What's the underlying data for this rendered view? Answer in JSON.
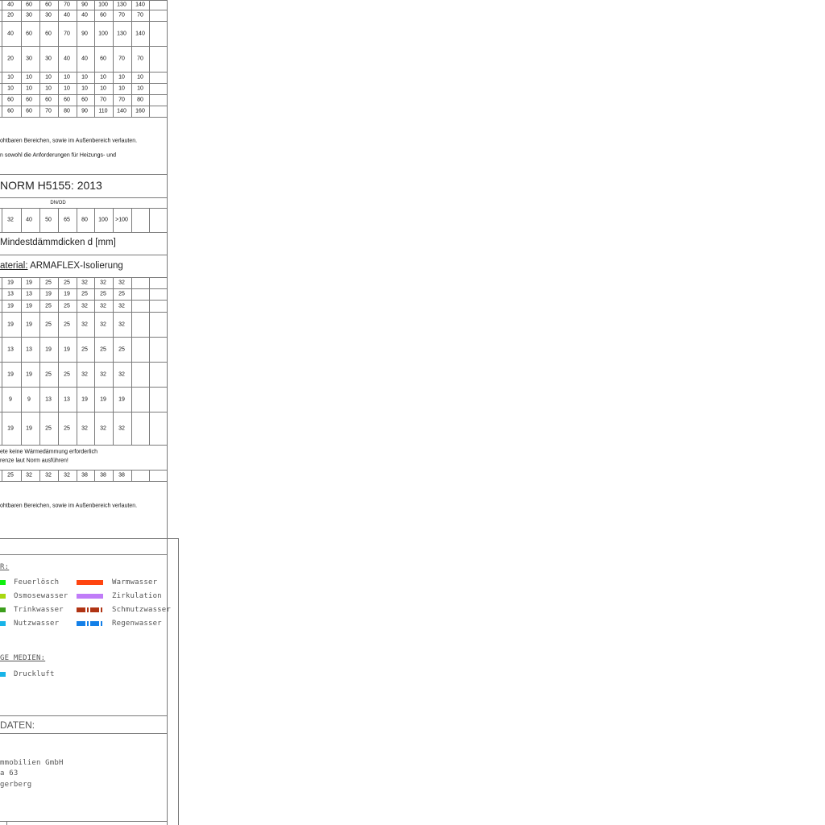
{
  "top_table": {
    "rows": [
      [
        "40",
        "60",
        "60",
        "70",
        "90",
        "100",
        "130",
        "140"
      ],
      [
        "20",
        "30",
        "30",
        "40",
        "40",
        "60",
        "70",
        "70"
      ],
      [
        "40",
        "60",
        "60",
        "70",
        "90",
        "100",
        "130",
        "140"
      ],
      [
        "20",
        "30",
        "30",
        "40",
        "40",
        "60",
        "70",
        "70"
      ],
      [
        "10",
        "10",
        "10",
        "10",
        "10",
        "10",
        "10",
        "10"
      ],
      [
        "10",
        "10",
        "10",
        "10",
        "10",
        "10",
        "10",
        "10"
      ],
      [
        "60",
        "60",
        "60",
        "60",
        "60",
        "70",
        "70",
        "80"
      ],
      [
        "60",
        "60",
        "70",
        "80",
        "90",
        "110",
        "140",
        "160"
      ]
    ]
  },
  "notes_top": {
    "line1": "ohtbaren Bereichen, sowie im Außenbereich verlauten.",
    "line2": "n sowohl die Anforderungen für Heizungs- und"
  },
  "norm": {
    "title": "NORM H5155: 2013",
    "dn_header": "DN/OD",
    "dn_values": [
      "32",
      "40",
      "50",
      "65",
      "80",
      "100",
      ">100"
    ],
    "min_thickness_label": "Mindestdämmdicken d [mm]",
    "material_label": "aterial:",
    "material_value": "ARMAFLEX-Isolierung",
    "rows": [
      [
        "19",
        "19",
        "25",
        "25",
        "32",
        "32",
        "32"
      ],
      [
        "13",
        "13",
        "19",
        "19",
        "25",
        "25",
        "25"
      ],
      [
        "19",
        "19",
        "25",
        "25",
        "32",
        "32",
        "32"
      ],
      [
        "19",
        "19",
        "25",
        "25",
        "32",
        "32",
        "32"
      ],
      [
        "13",
        "13",
        "19",
        "19",
        "25",
        "25",
        "25"
      ],
      [
        "19",
        "19",
        "25",
        "25",
        "32",
        "32",
        "32"
      ],
      [
        "9",
        "9",
        "13",
        "13",
        "19",
        "19",
        "19"
      ],
      [
        "19",
        "19",
        "25",
        "25",
        "32",
        "32",
        "32"
      ]
    ],
    "note1": "ete keine Wärmedämmung erforderlich",
    "note2": "renze laut Norm ausführen!",
    "extra_row": [
      "25",
      "32",
      "32",
      "32",
      "38",
      "38",
      "38"
    ],
    "note3": "ohtbaren Bereichen, sowie im Außenbereich verlauten."
  },
  "legend": {
    "header": "R:",
    "left": [
      {
        "label": "Feuerlösch",
        "color": "#10f010"
      },
      {
        "label": "Osmosewasser",
        "color": "#a8d810"
      },
      {
        "label": "Trinkwasser",
        "color": "#3c9e1c"
      },
      {
        "label": "Nutzwasser",
        "color": "#18b4e8"
      }
    ],
    "right": [
      {
        "label": "Warmwasser",
        "color": "#ff4510",
        "style": "solid"
      },
      {
        "label": "Zirkulation",
        "color": "#c07cf8",
        "style": "solid"
      },
      {
        "label": "Schmutzwasser",
        "color": "#b03414",
        "style": "dashed"
      },
      {
        "label": "Regenwasser",
        "color": "#1480e8",
        "style": "dashed"
      }
    ],
    "other_header": "GE MEDIEN:",
    "other": [
      {
        "label": "Druckluft",
        "color": "#18b4e8"
      }
    ]
  },
  "data_section": {
    "header": "DATEN:",
    "line1": "mmobilien GmbH",
    "line2": "a 63",
    "line3": "gerberg"
  }
}
